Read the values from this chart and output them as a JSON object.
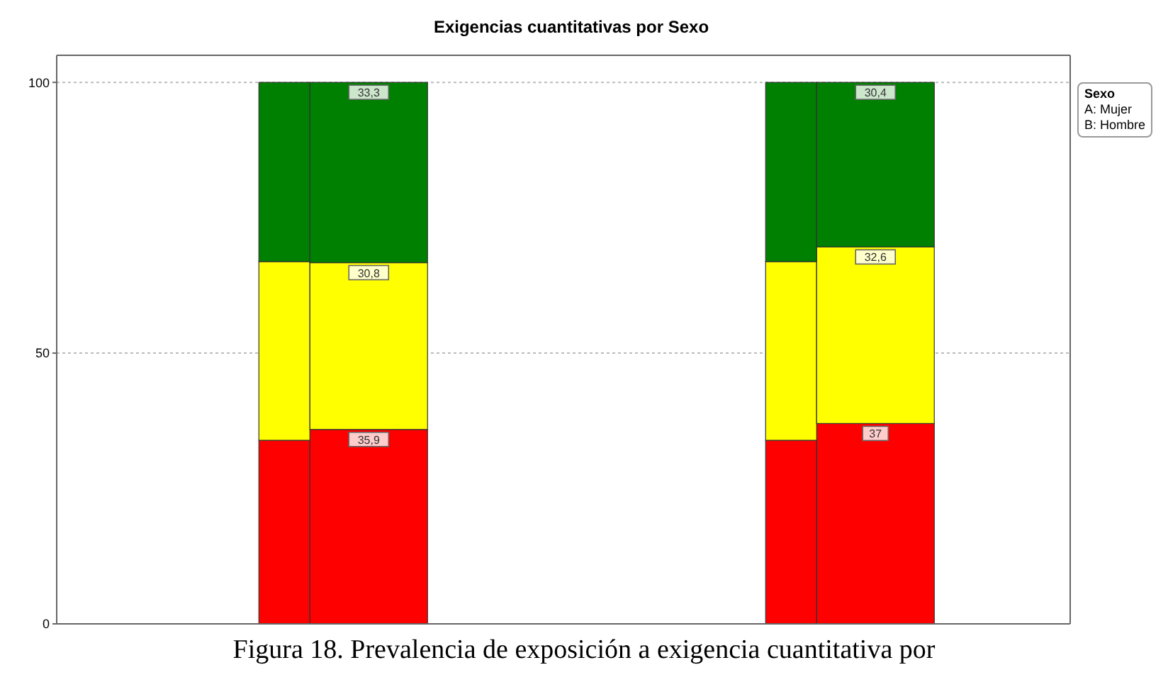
{
  "chart_data": {
    "type": "bar",
    "title": "Exigencias cuantitativas por Sexo",
    "categories": [
      null,
      null,
      null,
      null
    ],
    "stacked": true,
    "series": [
      {
        "color": "#ff0000",
        "values": [
          33.9,
          35.9,
          33.9,
          37
        ],
        "value_labels": [
          null,
          "35,9",
          null,
          "37"
        ]
      },
      {
        "color": "#ffff00",
        "values": [
          33,
          30.8,
          33,
          32.6
        ],
        "value_labels": [
          null,
          "30,8",
          null,
          "32,6"
        ]
      },
      {
        "color": "#008000",
        "values": [
          33.1,
          33.3,
          33.1,
          30.4
        ],
        "value_labels": [
          null,
          "33,3",
          null,
          "30,4"
        ]
      }
    ],
    "ylim": [
      0,
      105
    ],
    "yticks": [
      0,
      50,
      100
    ],
    "grid": "y",
    "legend_title": "Sexo",
    "annotations": [
      "A: Mujer",
      "B: Hombre",
      "Figura 18. Prevalencia de exposición a exigencia cuantitativa por"
    ]
  }
}
